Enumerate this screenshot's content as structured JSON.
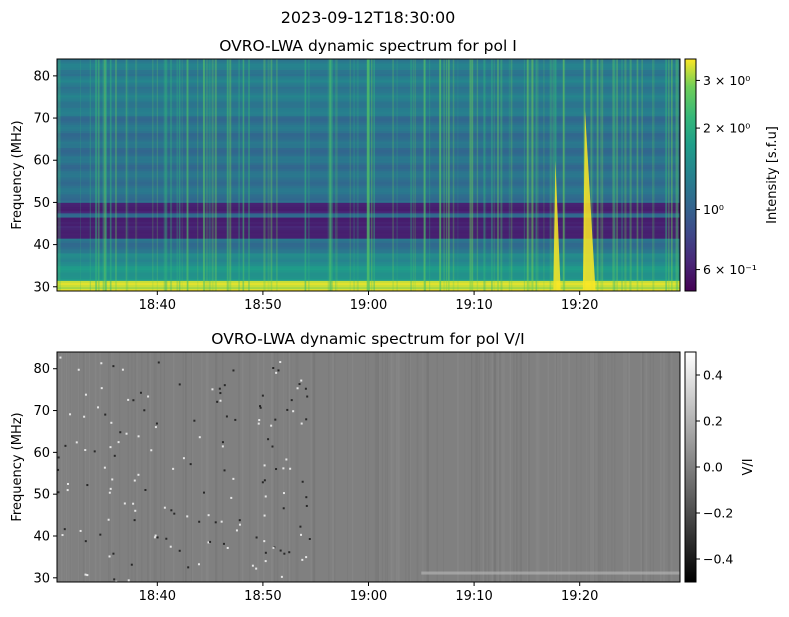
{
  "suptitle": "2023-09-12T18:30:00",
  "chart_data": [
    {
      "type": "heatmap",
      "title": "OVRO-LWA dynamic spectrum for pol I",
      "xlabel": "",
      "ylabel": "Frequency (MHz)",
      "x_ticks": [
        "18:40",
        "18:50",
        "19:00",
        "19:10",
        "19:20"
      ],
      "x_tick_minutes": [
        40,
        50,
        60,
        70,
        80
      ],
      "xlim_minutes": [
        30.5,
        89.5
      ],
      "y_ticks": [
        30,
        40,
        50,
        60,
        70,
        80
      ],
      "ylim": [
        29,
        84
      ],
      "colormap": "viridis",
      "colorbar_label": "Intensity [s.f.u]",
      "colorbar_scale": "log",
      "colorbar_range": [
        0.5,
        3.6
      ],
      "colorbar_ticks": [
        {
          "value": 0.6,
          "label": "6 × 10⁻¹"
        },
        {
          "value": 1.0,
          "label": "10⁰"
        },
        {
          "value": 2.0,
          "label": "2 × 10⁰"
        },
        {
          "value": 3.0,
          "label": "3 × 10⁰"
        }
      ],
      "features": {
        "dark_bands_mhz": [
          [
            41.5,
            46
          ],
          [
            47.5,
            49.5
          ]
        ],
        "bright_band_mhz": [
          29,
          31
        ],
        "bursts": [
          {
            "start_min": 77.5,
            "top_mhz": 60,
            "end_min": 78.2
          },
          {
            "start_min": 80.3,
            "top_mhz": 72,
            "end_min": 81.5
          }
        ]
      }
    },
    {
      "type": "heatmap",
      "title": "OVRO-LWA dynamic spectrum for pol V/I",
      "xlabel": "",
      "ylabel": "Frequency (MHz)",
      "x_ticks": [
        "18:40",
        "18:50",
        "19:00",
        "19:10",
        "19:20"
      ],
      "x_tick_minutes": [
        40,
        50,
        60,
        70,
        80
      ],
      "xlim_minutes": [
        30.5,
        89.5
      ],
      "y_ticks": [
        30,
        40,
        50,
        60,
        70,
        80
      ],
      "ylim": [
        29,
        84
      ],
      "colormap": "gray",
      "colorbar_label": "V/I",
      "colorbar_range": [
        -0.5,
        0.5
      ],
      "colorbar_ticks": [
        {
          "value": 0.4,
          "label": "0.4"
        },
        {
          "value": 0.2,
          "label": "0.2"
        },
        {
          "value": 0.0,
          "label": "0.0"
        },
        {
          "value": -0.2,
          "label": "−0.2"
        },
        {
          "value": -0.4,
          "label": "−0.4"
        }
      ]
    }
  ]
}
